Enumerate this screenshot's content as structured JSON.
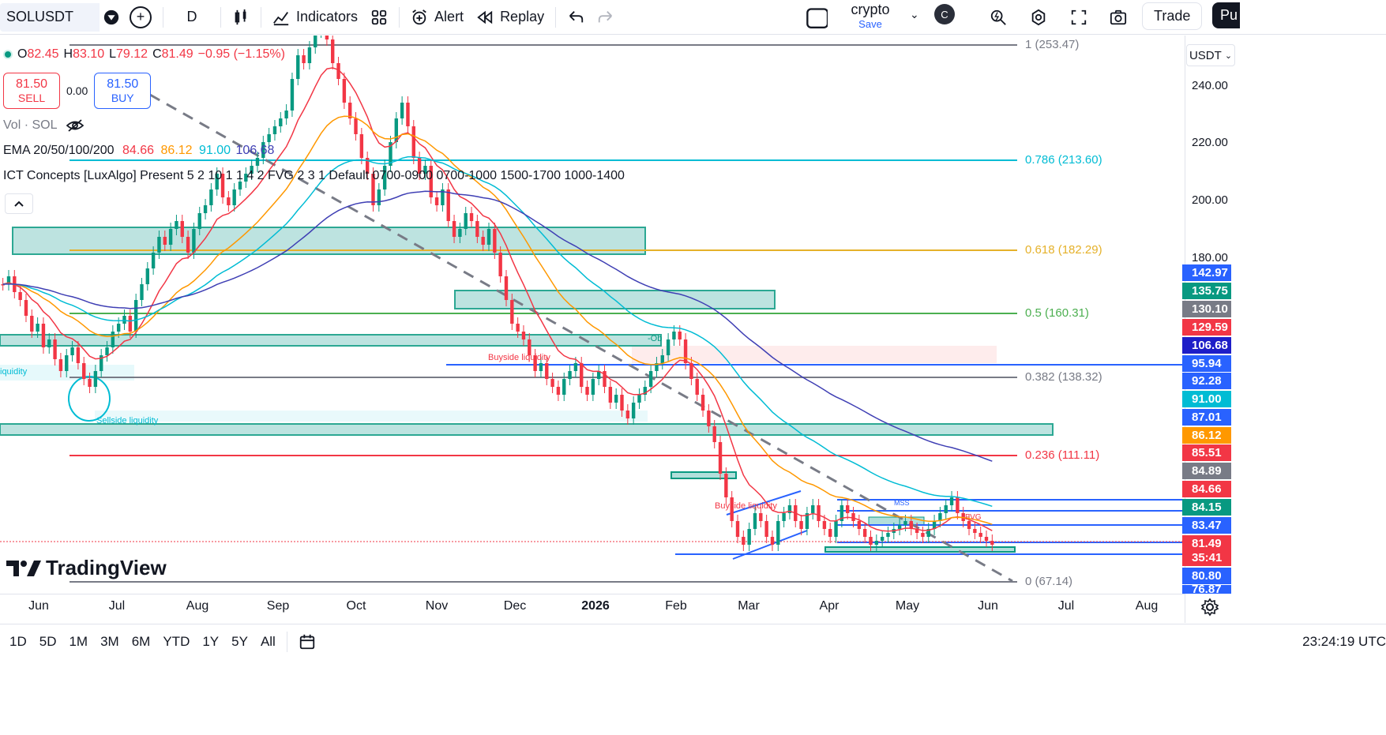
{
  "toolbar": {
    "symbol": "SOLUSDT",
    "interval": "D",
    "indicators_label": "Indicators",
    "alert_label": "Alert",
    "replay_label": "Replay",
    "layout_name": "crypto",
    "layout_save": "Save",
    "avatar_letter": "C",
    "trade_label": "Trade",
    "publish_label": "Pu"
  },
  "legend": {
    "open_label": "O",
    "open": "82.45",
    "high_label": "H",
    "high": "83.10",
    "low_label": "L",
    "low": "79.12",
    "close_label": "C",
    "close": "81.49",
    "change": "−0.95 (−1.15%)",
    "sell_price": "81.50",
    "sell_label": "SELL",
    "spread": "0.00",
    "buy_price": "81.50",
    "buy_label": "BUY",
    "volume": "Vol · SOL",
    "ema_label": "EMA 20/50/100/200",
    "ema20": "84.66",
    "ema50": "86.12",
    "ema100": "91.00",
    "ema200": "106.68",
    "ict_label": "ICT Concepts [LuxAlgo] Present 5 2 10 1 1 4 2 FVG 2 3 1 Default 0700-0900 0700-1000 1500-1700 1000-1400"
  },
  "fib_levels": [
    {
      "label": "1 (253.47)",
      "color": "#787b86"
    },
    {
      "label": "0.786 (213.60)",
      "color": "#00bcd4"
    },
    {
      "label": "0.618 (182.29)",
      "color": "#e5b12a"
    },
    {
      "label": "0.5 (160.31)",
      "color": "#4caf50"
    },
    {
      "label": "0.382 (138.32)",
      "color": "#787b86"
    },
    {
      "label": "0.236 (111.11)",
      "color": "#f23645"
    },
    {
      "label": "0 (67.14)",
      "color": "#787b86"
    }
  ],
  "annotations": {
    "buyside1": "Buyside liquidity",
    "sellside": "Sellside liquidity",
    "liquidity": "iquidity",
    "buyside2": "Buyside liquidity",
    "ob": "-Ob",
    "mss": "MSS",
    "fvg": "FVG"
  },
  "price_axis": {
    "currency": "USDT",
    "ticks": [
      "240.00",
      "220.00",
      "200.00",
      "180.00"
    ],
    "labels": [
      {
        "value": "142.97",
        "color": "#2962ff"
      },
      {
        "value": "135.75",
        "color": "#089981"
      },
      {
        "value": "130.10",
        "color": "#787b86"
      },
      {
        "value": "129.59",
        "color": "#f23645"
      },
      {
        "value": "106.68",
        "color": "#1e1ec8"
      },
      {
        "value": "95.94",
        "color": "#2962ff"
      },
      {
        "value": "92.28",
        "color": "#2962ff"
      },
      {
        "value": "91.00",
        "color": "#00bcd4"
      },
      {
        "value": "87.01",
        "color": "#2962ff"
      },
      {
        "value": "86.12",
        "color": "#ff9800"
      },
      {
        "value": "85.51",
        "color": "#f23645"
      },
      {
        "value": "84.89",
        "color": "#787b86"
      },
      {
        "value": "84.66",
        "color": "#f23645"
      },
      {
        "value": "84.15",
        "color": "#089981"
      },
      {
        "value": "83.47",
        "color": "#2962ff"
      },
      {
        "value": "81.49",
        "color": "#f23645"
      },
      {
        "value": "35:41",
        "color": "#f23645"
      },
      {
        "value": "80.80",
        "color": "#2962ff"
      },
      {
        "value": "76.87",
        "color": "#2962ff"
      }
    ]
  },
  "time_axis": {
    "labels": [
      "Jun",
      "Jul",
      "Aug",
      "Sep",
      "Oct",
      "Nov",
      "Dec",
      "2026",
      "Feb",
      "Mar",
      "Apr",
      "May",
      "Jun",
      "Jul",
      "Aug"
    ]
  },
  "bottom": {
    "ranges": [
      "1D",
      "5D",
      "1M",
      "3M",
      "6M",
      "YTD",
      "1Y",
      "5Y",
      "All"
    ],
    "clock": "23:24:19 UTC"
  },
  "brand": "TradingView",
  "colors": {
    "up": "#089981",
    "down": "#f23645",
    "ema20": "#f23645",
    "ema50": "#ff9800",
    "ema100": "#00bcd4",
    "ema200": "#3f3fb4"
  }
}
